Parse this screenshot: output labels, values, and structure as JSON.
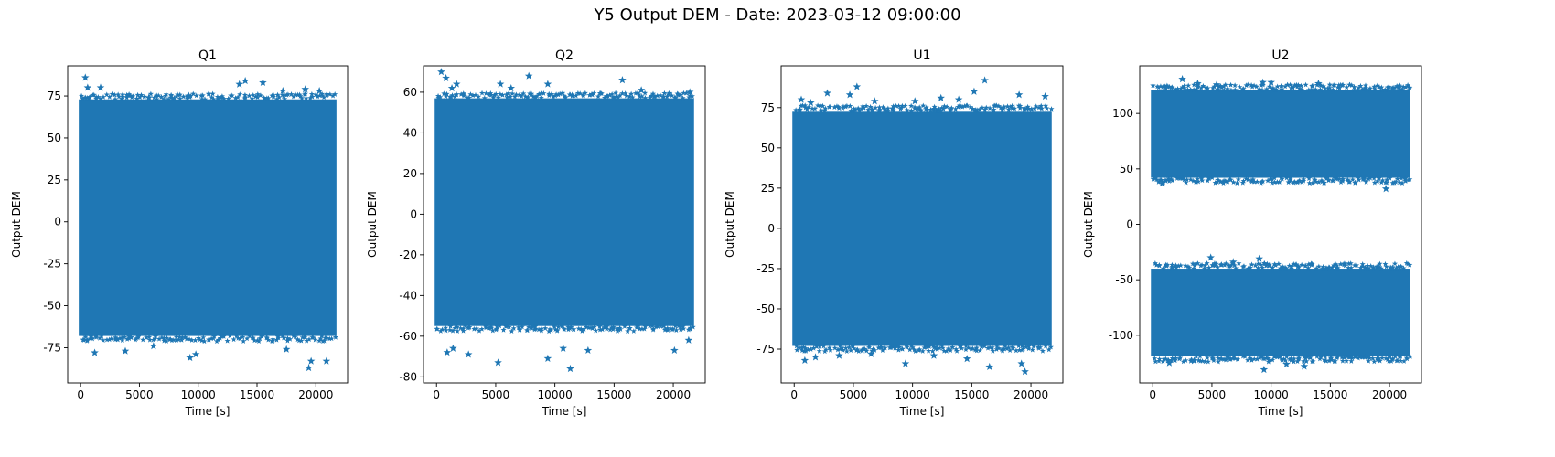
{
  "figure": {
    "title": "Y5 Output DEM - Date: 2023-03-12 09:00:00",
    "marker_color": "#1f77b4"
  },
  "chart_data": [
    {
      "type": "scatter",
      "title": "Q1",
      "xlabel": "Time [s]",
      "ylabel": "Output DEM",
      "xlim": [
        -1100,
        22700
      ],
      "ylim": [
        -96,
        93
      ],
      "xticks": [
        0,
        5000,
        10000,
        15000,
        20000
      ],
      "yticks": [
        -75,
        -50,
        -25,
        0,
        25,
        50,
        75
      ],
      "x_range": [
        0,
        21600
      ],
      "bands": [
        {
          "low": -68,
          "high": 73
        }
      ],
      "outliers": [
        [
          400,
          86
        ],
        [
          600,
          80
        ],
        [
          1700,
          80
        ],
        [
          5800,
          74
        ],
        [
          9200,
          75
        ],
        [
          13500,
          82
        ],
        [
          14000,
          84
        ],
        [
          15500,
          83
        ],
        [
          17200,
          78
        ],
        [
          19100,
          79
        ],
        [
          20300,
          78
        ],
        [
          1200,
          -78
        ],
        [
          3800,
          -77
        ],
        [
          6200,
          -74
        ],
        [
          9300,
          -81
        ],
        [
          9800,
          -79
        ],
        [
          17500,
          -76
        ],
        [
          19400,
          -87
        ],
        [
          19600,
          -83
        ],
        [
          20900,
          -83
        ]
      ],
      "grid": false,
      "legend": "none"
    },
    {
      "type": "scatter",
      "title": "Q2",
      "xlabel": "Time [s]",
      "ylabel": "Output DEM",
      "xlim": [
        -1100,
        22700
      ],
      "ylim": [
        -83,
        73
      ],
      "xticks": [
        0,
        5000,
        10000,
        15000,
        20000
      ],
      "yticks": [
        -80,
        -60,
        -40,
        -20,
        0,
        20,
        40,
        60
      ],
      "x_range": [
        0,
        21600
      ],
      "bands": [
        {
          "low": -55,
          "high": 57
        }
      ],
      "outliers": [
        [
          400,
          70
        ],
        [
          800,
          67
        ],
        [
          1300,
          62
        ],
        [
          1700,
          64
        ],
        [
          5400,
          64
        ],
        [
          6300,
          62
        ],
        [
          7800,
          68
        ],
        [
          9400,
          64
        ],
        [
          15700,
          66
        ],
        [
          17300,
          61
        ],
        [
          21400,
          60
        ],
        [
          900,
          -68
        ],
        [
          1400,
          -66
        ],
        [
          2700,
          -69
        ],
        [
          5200,
          -73
        ],
        [
          9400,
          -71
        ],
        [
          10700,
          -66
        ],
        [
          11300,
          -76
        ],
        [
          12800,
          -67
        ],
        [
          20100,
          -67
        ],
        [
          21300,
          -62
        ]
      ],
      "grid": false,
      "legend": "none"
    },
    {
      "type": "scatter",
      "title": "U1",
      "xlabel": "Time [s]",
      "ylabel": "Output DEM",
      "xlim": [
        -1100,
        22700
      ],
      "ylim": [
        -96,
        101
      ],
      "xticks": [
        0,
        5000,
        10000,
        15000,
        20000
      ],
      "yticks": [
        -75,
        -50,
        -25,
        0,
        25,
        50,
        75
      ],
      "x_range": [
        0,
        21600
      ],
      "bands": [
        {
          "low": -73,
          "high": 73
        }
      ],
      "outliers": [
        [
          600,
          80
        ],
        [
          1400,
          78
        ],
        [
          2800,
          84
        ],
        [
          4700,
          83
        ],
        [
          5300,
          88
        ],
        [
          6800,
          79
        ],
        [
          10200,
          79
        ],
        [
          12400,
          81
        ],
        [
          13900,
          80
        ],
        [
          15200,
          85
        ],
        [
          16100,
          92
        ],
        [
          19000,
          83
        ],
        [
          21200,
          82
        ],
        [
          900,
          -82
        ],
        [
          1800,
          -80
        ],
        [
          3800,
          -79
        ],
        [
          6500,
          -78
        ],
        [
          9400,
          -84
        ],
        [
          11800,
          -79
        ],
        [
          14600,
          -81
        ],
        [
          16500,
          -86
        ],
        [
          19200,
          -84
        ],
        [
          19500,
          -89
        ]
      ],
      "grid": false,
      "legend": "none"
    },
    {
      "type": "scatter",
      "title": "U2",
      "xlabel": "Time [s]",
      "ylabel": "Output DEM",
      "xlim": [
        -1100,
        22700
      ],
      "ylim": [
        -143,
        143
      ],
      "xticks": [
        0,
        5000,
        10000,
        15000,
        20000
      ],
      "yticks": [
        -100,
        -50,
        0,
        50,
        100
      ],
      "x_range": [
        0,
        21600
      ],
      "bands": [
        {
          "low": 42,
          "high": 121
        },
        {
          "low": -119,
          "high": -40
        }
      ],
      "outliers": [
        [
          800,
          37
        ],
        [
          2500,
          131
        ],
        [
          3800,
          127
        ],
        [
          5400,
          126
        ],
        [
          9300,
          128
        ],
        [
          10000,
          128
        ],
        [
          14000,
          127
        ],
        [
          19700,
          32
        ],
        [
          1400,
          -125
        ],
        [
          3500,
          -123
        ],
        [
          4900,
          -30
        ],
        [
          6800,
          -34
        ],
        [
          9000,
          -31
        ],
        [
          9400,
          -131
        ],
        [
          11300,
          -126
        ],
        [
          12800,
          -128
        ],
        [
          20000,
          -119
        ]
      ],
      "grid": false,
      "legend": "none"
    }
  ]
}
